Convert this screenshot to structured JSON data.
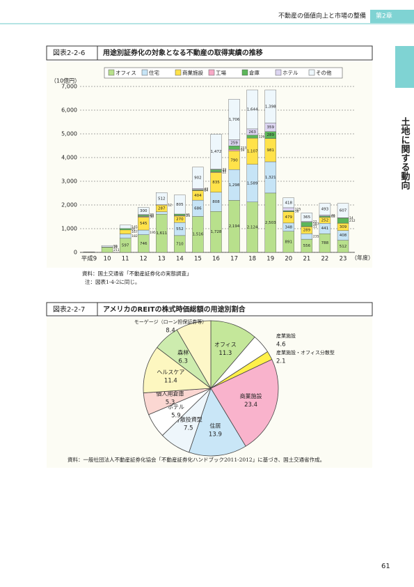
{
  "header": {
    "section": "不動産の価値向上と市場の整備",
    "chapter": "第2章"
  },
  "side_tab": "土地に関する動向",
  "chart_data": [
    {
      "type": "bar",
      "stacked": true,
      "figure_label": "図表2-2-6",
      "title": "用途別証券化の対象となる不動産の取得実績の推移",
      "y_axis_label": "（10億円）",
      "x_axis_label": "（年度）",
      "categories": [
        "平成9",
        "10",
        "11",
        "12",
        "13",
        "14",
        "15",
        "16",
        "17",
        "18",
        "19",
        "20",
        "21",
        "22",
        "23"
      ],
      "series": [
        {
          "name": "オフィス",
          "color": "#b8e08c",
          "values": [
            4,
            211,
            597,
            746,
            1611,
            710,
            1516,
            1728,
            2194,
            2124,
            2503,
            891,
            556,
            788,
            512
          ],
          "value_labels": [
            null,
            "211",
            "597",
            "746",
            "1,611",
            "710",
            "1,516",
            "1,728",
            "2,194",
            "2,124",
            "2,503",
            "891",
            "556",
            "788",
            "512"
          ]
        },
        {
          "name": "住宅",
          "color": "#c6e4f6",
          "values": [
            4,
            19,
            182,
            195,
            100,
            552,
            686,
            808,
            1298,
            1589,
            1321,
            348,
            235,
            441,
            408
          ],
          "value_labels": [
            null,
            "19",
            "182",
            "195",
            null,
            "552",
            "686",
            "808",
            "1,298",
            "1,589",
            "1,321",
            "348",
            "235",
            "441",
            "408"
          ]
        },
        {
          "name": "商業施設",
          "color": "#ffe24a",
          "values": [
            4,
            0,
            167,
            545,
            287,
            270,
            404,
            835,
            790,
            1107,
            981,
            479,
            289,
            252,
            309
          ],
          "value_labels": [
            null,
            null,
            "167",
            "545",
            "287",
            "270",
            "404",
            "835",
            "790",
            "1,107",
            "981",
            "479",
            "289",
            "252",
            "309"
          ]
        },
        {
          "name": "工場",
          "color": "#f6a9c6",
          "values": [
            0,
            0,
            0,
            30,
            12,
            25,
            14,
            22,
            59,
            0,
            2,
            3,
            11,
            3,
            4
          ],
          "value_labels": [
            null,
            null,
            null,
            "30",
            "12",
            "25",
            "14",
            "22",
            "59",
            null,
            null,
            null,
            "11",
            null,
            null
          ]
        },
        {
          "name": "倉庫",
          "color": "#5cb65a",
          "values": [
            4,
            0,
            61,
            60,
            0,
            61,
            27,
            97,
            153,
            126,
            289,
            38,
            187,
            48,
            212
          ],
          "value_labels": [
            null,
            null,
            "61",
            "60",
            null,
            "61",
            "27",
            "97",
            "153",
            "126",
            "289",
            "38",
            "187",
            "48",
            "212"
          ]
        },
        {
          "name": "ホテル",
          "color": "#dcd5f1",
          "values": [
            0,
            0,
            0,
            20,
            0,
            0,
            47,
            22,
            259,
            263,
            359,
            125,
            22,
            46,
            14
          ],
          "value_labels": [
            null,
            null,
            null,
            "20",
            null,
            null,
            "47",
            "22",
            "259",
            "263",
            "359",
            "125",
            "22",
            "46",
            "14"
          ]
        },
        {
          "name": "その他",
          "color": "#eef7fc",
          "values": [
            4,
            59,
            145,
            300,
            512,
            805,
            902,
            1472,
            1706,
            1644,
            1398,
            418,
            365,
            493,
            607
          ],
          "value_labels": [
            null,
            "59",
            "145",
            "300",
            "512",
            "805",
            "902",
            "1,472",
            "1,706",
            "1,644",
            "1,398",
            "418",
            "365",
            "493",
            "607"
          ]
        }
      ],
      "ylim": [
        0,
        7000
      ],
      "yticks": [
        0,
        {
          "value": 1000,
          "label": "1,000"
        },
        {
          "value": 2000,
          "label": "2,000"
        },
        {
          "value": 3000,
          "label": "3,000"
        },
        {
          "value": 4000,
          "label": "4,000"
        },
        {
          "value": 5000,
          "label": "5,000"
        },
        {
          "value": 6000,
          "label": "6,000"
        },
        {
          "value": 7000,
          "label": "7,000"
        }
      ],
      "grid": true,
      "legend": "top",
      "source": "資料：国土交通省「不動産証券化の実態調査」",
      "note": "注：図表1-4-2に同じ。"
    },
    {
      "type": "pie",
      "figure_label": "図表2-2-7",
      "title": "アメリカのREITの株式時価総額の用途別割合",
      "categories": [
        "オフィス",
        "産業施設",
        "産業施設・オフィス分散型",
        "商業施設",
        "住居",
        "分散投資型",
        "ホテル",
        "個人用倉庫",
        "ヘルスケア",
        "森林",
        "モーゲージ（ローン担保証券等）"
      ],
      "values": [
        11.3,
        4.6,
        2.1,
        23.4,
        13.9,
        7.5,
        5.9,
        5.3,
        11.4,
        6.3,
        8.4
      ],
      "colors": [
        "#c4e79a",
        "#ffffff",
        "#fff04a",
        "#f9b3cc",
        "#c9e6f7",
        "#eef6fb",
        "#ffffff",
        "#fbd7d2",
        "#fdf7c0",
        "#cdecae",
        "#fdf7c8"
      ],
      "source": "資料：一般社団法人不動産証券化協会「不動産証券化ハンドブック2011-2012」に基づき、国土交通省作成。"
    }
  ],
  "page_number": "61"
}
